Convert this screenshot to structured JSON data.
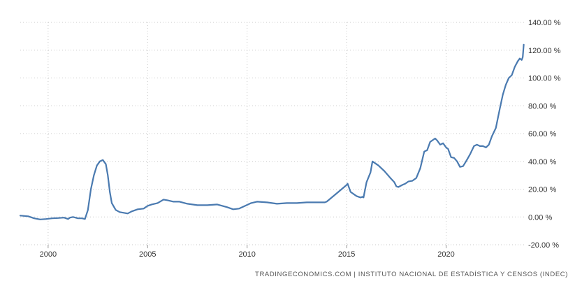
{
  "source_text": "TRADINGECONOMICS.COM  |  INSTITUTO NACIONAL DE ESTADÍSTICA Y CENSOS (INDEC)",
  "colors": {
    "line": "#4a7ab0",
    "grid": "#c8c8c8",
    "text": "#333333"
  },
  "chart_data": {
    "type": "line",
    "title": "",
    "xlabel": "",
    "ylabel": "",
    "xlim": [
      1998.6,
      2023.95
    ],
    "ylim": [
      -20,
      140
    ],
    "grid": true,
    "x_ticks": [
      2000,
      2005,
      2010,
      2015,
      2020
    ],
    "x_tick_labels": [
      "2000",
      "2005",
      "2010",
      "2015",
      "2020"
    ],
    "y_ticks": [
      -20,
      0,
      20,
      40,
      60,
      80,
      100,
      120,
      140
    ],
    "y_tick_labels": [
      "-20.00 %",
      "0.00 %",
      "20.00 %",
      "40.00 %",
      "60.00 %",
      "80.00 %",
      "100.00 %",
      "120.00 %",
      "140.00 %"
    ],
    "series": [
      {
        "values_x": [
          1998.6,
          1999.0,
          1999.3,
          1999.6,
          1999.9,
          2000.2,
          2000.5,
          2000.8,
          2001.0,
          2001.1,
          2001.25,
          2001.5,
          2001.7,
          2001.85,
          2002.0,
          2002.15,
          2002.3,
          2002.45,
          2002.6,
          2002.75,
          2002.9,
          2003.0,
          2003.1,
          2003.2,
          2003.4,
          2003.6,
          2003.8,
          2004.0,
          2004.2,
          2004.5,
          2004.8,
          2005.0,
          2005.2,
          2005.5,
          2005.8,
          2006.0,
          2006.3,
          2006.6,
          2007.0,
          2007.5,
          2008.0,
          2008.5,
          2009.0,
          2009.3,
          2009.6,
          2009.9,
          2010.2,
          2010.5,
          2011.0,
          2011.5,
          2012.0,
          2012.5,
          2013.0,
          2013.3,
          2013.6,
          2013.9,
          2014.0,
          2014.5,
          2015.0,
          2015.05,
          2015.2,
          2015.5,
          2015.7,
          2015.8,
          2015.85,
          2016.0,
          2016.2,
          2016.3,
          2016.6,
          2016.9,
          2017.2,
          2017.4,
          2017.5,
          2017.6,
          2017.8,
          2017.95,
          2018.1,
          2018.3,
          2018.5,
          2018.7,
          2018.9,
          2019.05,
          2019.2,
          2019.3,
          2019.45,
          2019.55,
          2019.7,
          2019.85,
          2020.0,
          2020.1,
          2020.25,
          2020.4,
          2020.55,
          2020.7,
          2020.85,
          2021.0,
          2021.2,
          2021.4,
          2021.55,
          2021.7,
          2021.85,
          2022.0,
          2022.15,
          2022.3,
          2022.5,
          2022.7,
          2022.85,
          2023.0,
          2023.15,
          2023.3,
          2023.45,
          2023.6,
          2023.7,
          2023.8,
          2023.85,
          2023.9
        ],
        "values_y": [
          1.0,
          0.5,
          -1.0,
          -1.8,
          -1.5,
          -1.0,
          -0.8,
          -0.5,
          -1.5,
          -0.5,
          0.0,
          -1.0,
          -1.0,
          -1.5,
          5.0,
          20.0,
          30.0,
          37.0,
          40.0,
          41.0,
          38.0,
          30.0,
          18.0,
          10.0,
          5.0,
          3.5,
          3.0,
          2.5,
          4.0,
          5.5,
          6.0,
          8.0,
          9.0,
          10.0,
          12.5,
          12.0,
          11.0,
          11.0,
          9.5,
          8.5,
          8.5,
          9.0,
          7.0,
          5.5,
          6.0,
          8.0,
          10.0,
          11.0,
          10.5,
          9.5,
          10.0,
          10.0,
          10.5,
          10.5,
          10.5,
          10.5,
          11.0,
          17.0,
          23.0,
          24.0,
          18.0,
          15.0,
          14.0,
          14.5,
          14.0,
          25.0,
          32.0,
          40.0,
          37.0,
          33.0,
          28.0,
          25.0,
          22.0,
          21.5,
          23.0,
          24.0,
          25.5,
          26.0,
          28.0,
          35.0,
          47.0,
          48.0,
          54.0,
          55.0,
          56.5,
          55.0,
          52.0,
          53.0,
          50.0,
          49.0,
          43.0,
          42.5,
          40.0,
          36.0,
          36.5,
          40.0,
          45.0,
          51.0,
          52.0,
          51.0,
          51.0,
          50.0,
          52.0,
          58.0,
          64.0,
          78.0,
          88.0,
          95.0,
          100.0,
          102.0,
          108.0,
          112.0,
          114.0,
          113.0,
          115.0,
          124.0
        ]
      }
    ]
  }
}
